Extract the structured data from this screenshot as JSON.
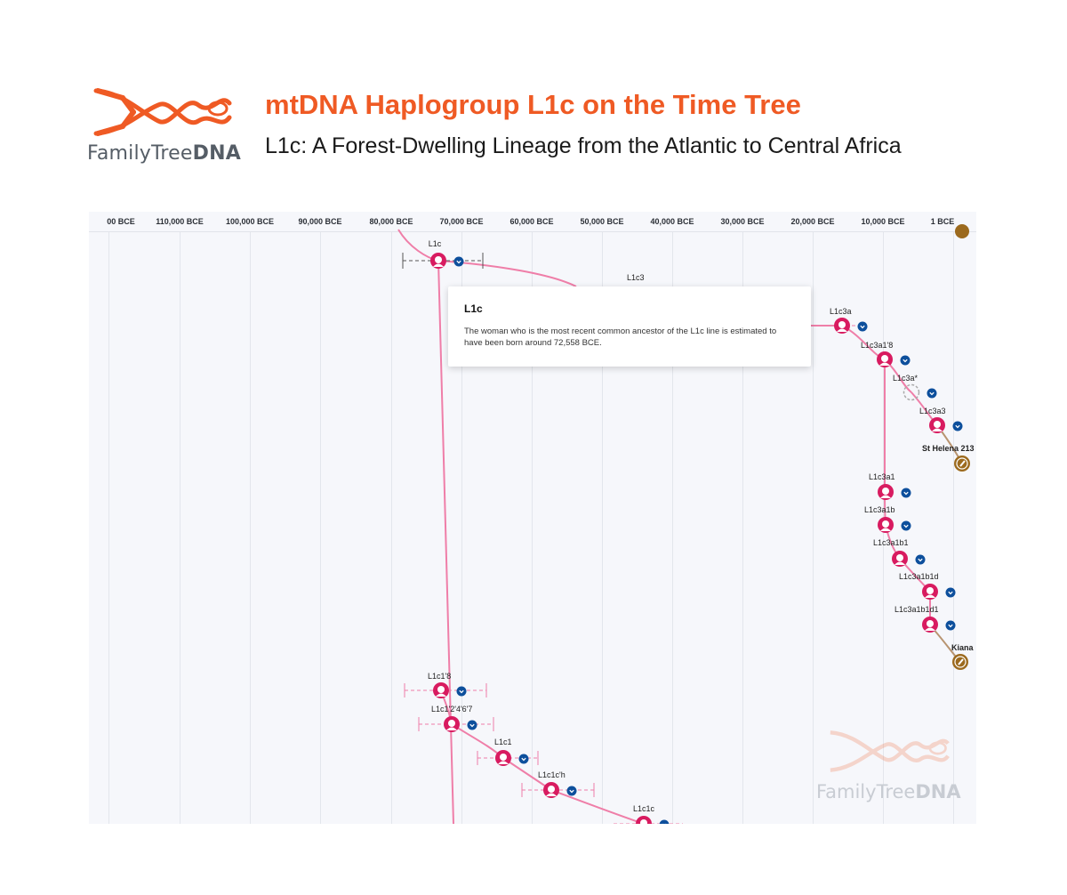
{
  "header": {
    "logo_text_light": "FamilyTree",
    "logo_text_bold": "DNA",
    "title": "mtDNA Haplogroup L1c on the Time Tree",
    "subtitle": "L1c: A Forest-Dwelling Lineage from the Atlantic to Central Africa"
  },
  "axis": {
    "ticks": [
      "00 BCE",
      "110,000 BCE",
      "100,000 BCE",
      "90,000 BCE",
      "80,000 BCE",
      "70,000 BCE",
      "60,000 BCE",
      "50,000 BCE",
      "40,000 BCE",
      "30,000 BCE",
      "20,000 BCE",
      "10,000 BCE",
      "1 BCE"
    ]
  },
  "nodes": [
    {
      "label": "L1c"
    },
    {
      "label": "L1c3"
    },
    {
      "label": "L1c3a"
    },
    {
      "label": "L1c3a1'8"
    },
    {
      "label": "L1c3a*"
    },
    {
      "label": "L1c3a3"
    },
    {
      "label": "St Helena 213"
    },
    {
      "label": "L1c3a1"
    },
    {
      "label": "L1c3a1b"
    },
    {
      "label": "L1c3a1b1"
    },
    {
      "label": "L1c3a1b1d"
    },
    {
      "label": "L1c3a1b1d1"
    },
    {
      "label": "Kiana"
    },
    {
      "label": "L1c1'8"
    },
    {
      "label": "L1c1'2'4'6'7"
    },
    {
      "label": "L1c1"
    },
    {
      "label": "L1c1c'h"
    },
    {
      "label": "L1c1c"
    }
  ],
  "popup": {
    "title": "L1c",
    "body": "The woman who is the most recent common ancestor of the L1c line is estimated to have been born around 72,558 BCE."
  },
  "watermark": {
    "text_light": "FamilyTree",
    "text_bold": "DNA"
  },
  "colors": {
    "brand_orange": "#ef5a24",
    "node_pink": "#d81b60",
    "line_pink": "#ef7ea8",
    "chevron_blue": "#0d4f9c",
    "sample_brown": "#9c6a1e"
  }
}
